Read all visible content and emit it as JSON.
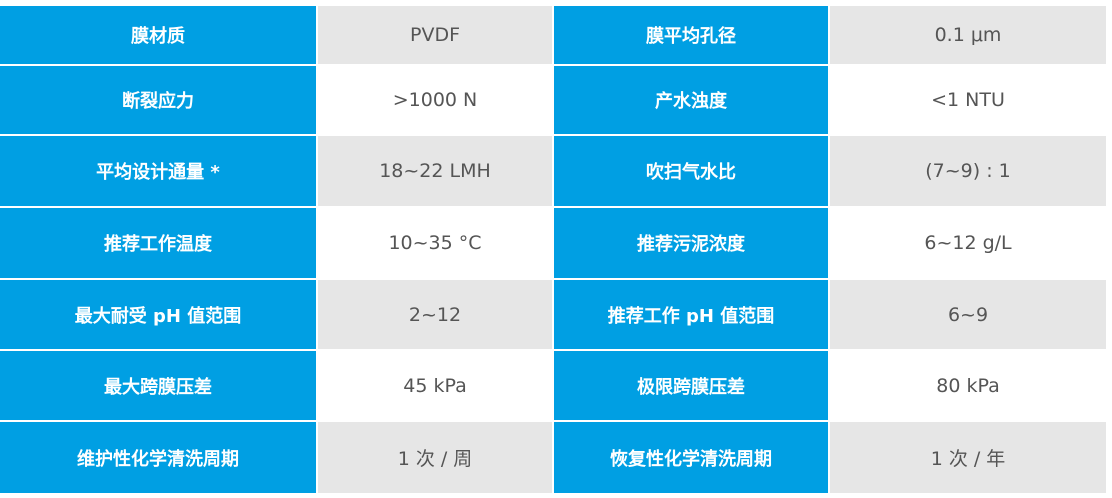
{
  "colors": {
    "header_blue": "#009fe3",
    "row_gray": "#e6e6e6",
    "text": "#555555"
  },
  "rows": [
    {
      "k1": "膜材质",
      "v1": "PVDF",
      "k2": "膜平均孔径",
      "v2": "0.1 μm"
    },
    {
      "k1": "断裂应力",
      "v1": ">1000 N",
      "k2": "产水浊度",
      "v2": "<1 NTU"
    },
    {
      "k1": "平均设计通量 *",
      "v1": "18~22 LMH",
      "k2": "吹扫气水比",
      "v2": "(7~9) : 1"
    },
    {
      "k1": "推荐工作温度",
      "v1": "10~35 °C",
      "k2": "推荐污泥浓度",
      "v2": "6~12 g/L"
    },
    {
      "k1": "最大耐受 pH 值范围",
      "v1": "2~12",
      "k2": "推荐工作 pH 值范围",
      "v2": "6~9"
    },
    {
      "k1": "最大跨膜压差",
      "v1": "45 kPa",
      "k2": "极限跨膜压差",
      "v2": "80 kPa"
    },
    {
      "k1": "维护性化学清洗周期",
      "v1": "1 次 / 周",
      "k2": "恢复性化学清洗周期",
      "v2": "1 次 / 年"
    }
  ]
}
